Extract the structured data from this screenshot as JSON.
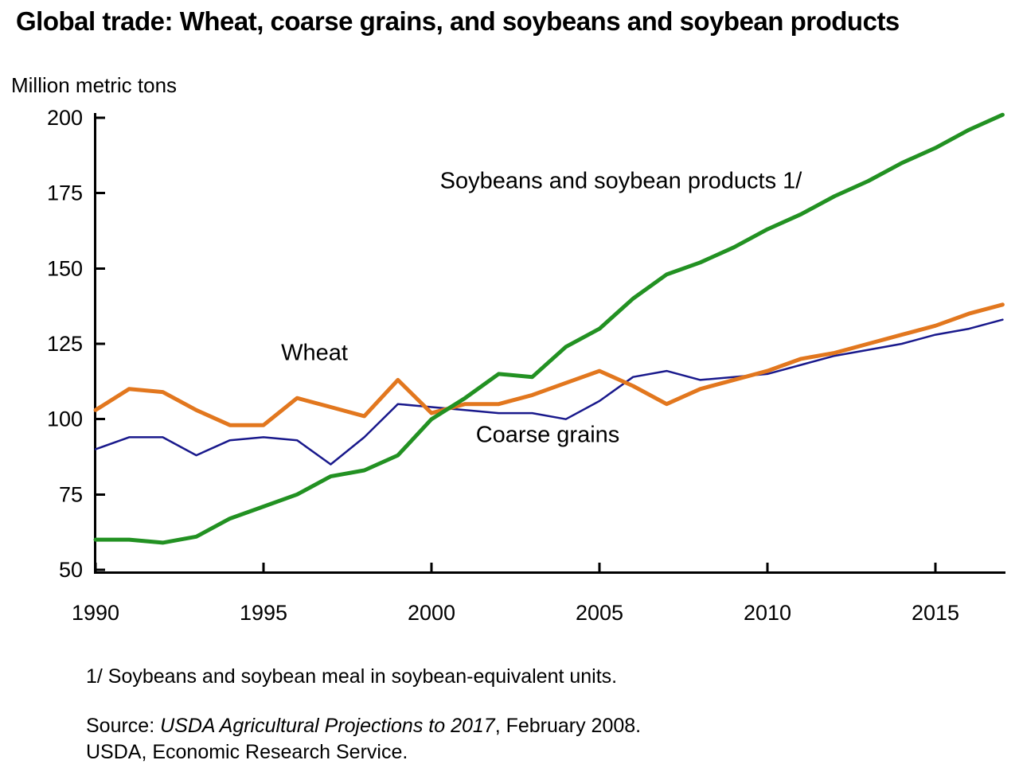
{
  "title": "Global trade: Wheat, coarse grains, and soybeans and soybean products",
  "y_axis_label": "Million metric tons",
  "chart_data": {
    "type": "line",
    "x_years": [
      1990,
      1991,
      1992,
      1993,
      1994,
      1995,
      1996,
      1997,
      1998,
      1999,
      2000,
      2001,
      2002,
      2003,
      2004,
      2005,
      2006,
      2007,
      2008,
      2009,
      2010,
      2011,
      2012,
      2013,
      2014,
      2015,
      2016,
      2017
    ],
    "xlim": [
      1990,
      2017
    ],
    "ylim": [
      50,
      200
    ],
    "yticks": [
      50,
      75,
      100,
      125,
      150,
      175,
      200
    ],
    "xticks": [
      1990,
      1995,
      2000,
      2005,
      2010,
      2015
    ],
    "grid": false,
    "legend_position": "labels-inside-plot",
    "series": [
      {
        "name": "Soybeans and soybean products 1/",
        "color": "#229122",
        "stroke_width": 5,
        "values": [
          60,
          60,
          59,
          61,
          67,
          71,
          75,
          81,
          83,
          88,
          100,
          107,
          115,
          114,
          124,
          130,
          140,
          148,
          152,
          157,
          163,
          168,
          174,
          179,
          185,
          190,
          196,
          201
        ]
      },
      {
        "name": "Wheat",
        "color": "#E2771E",
        "stroke_width": 5,
        "values": [
          103,
          110,
          109,
          103,
          98,
          98,
          107,
          104,
          101,
          113,
          102,
          105,
          105,
          108,
          112,
          116,
          111,
          105,
          110,
          113,
          116,
          120,
          122,
          125,
          128,
          131,
          135,
          138
        ]
      },
      {
        "name": "Coarse grains",
        "color": "#19198C",
        "stroke_width": 2.5,
        "values": [
          90,
          94,
          94,
          88,
          93,
          94,
          93,
          85,
          94,
          105,
          104,
          103,
          102,
          102,
          100,
          106,
          114,
          116,
          113,
          114,
          115,
          118,
          121,
          123,
          125,
          128,
          130,
          133
        ]
      }
    ]
  },
  "footnote": "1/ Soybeans and soybean meal in soybean-equivalent units.",
  "source": {
    "prefix": "Source: ",
    "italic": "USDA Agricultural Projections to 2017",
    "suffix": ", February 2008.",
    "line2": "USDA, Economic Research Service."
  }
}
